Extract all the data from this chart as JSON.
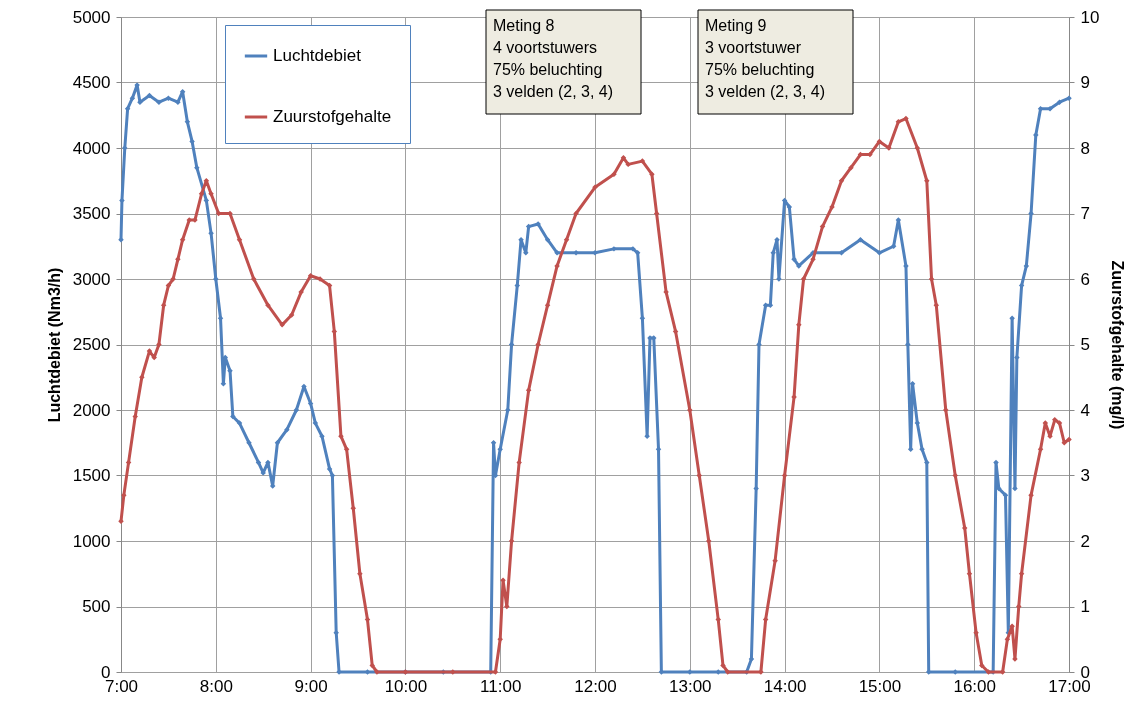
{
  "chart_data": {
    "type": "line",
    "ylabel": "Luchtdebiet (Nm3/h)",
    "y2label": "Zuurstofgehalte  (mg/l)",
    "xlim": [
      7,
      17
    ],
    "xticks": [
      {
        "value": 7,
        "label": "7:00"
      },
      {
        "value": 8,
        "label": "8:00"
      },
      {
        "value": 9,
        "label": "9:00"
      },
      {
        "value": 10,
        "label": "10:00"
      },
      {
        "value": 11,
        "label": "11:00"
      },
      {
        "value": 12,
        "label": "12:00"
      },
      {
        "value": 13,
        "label": "13:00"
      },
      {
        "value": 14,
        "label": "14:00"
      },
      {
        "value": 15,
        "label": "15:00"
      },
      {
        "value": 16,
        "label": "16:00"
      },
      {
        "value": 17,
        "label": "17:00"
      }
    ],
    "ylim": [
      0,
      5000
    ],
    "yticks": [
      0,
      500,
      1000,
      1500,
      2000,
      2500,
      3000,
      3500,
      4000,
      4500,
      5000
    ],
    "y2lim": [
      0,
      10
    ],
    "y2ticks": [
      0,
      1,
      2,
      3,
      4,
      5,
      6,
      7,
      8,
      9,
      10
    ],
    "grid": true,
    "legend": "top left",
    "marker": "diamond",
    "line_style": "solid",
    "annotations": [
      "Meting 8\n4 voortstuwers\n75% beluchting\n3 velden (2, 3, 4)",
      "Meting 9\n3 voortstuwer\n75% beluchting\n3 velden (2, 3, 4)"
    ],
    "series": [
      {
        "name": "Luchtdebiet",
        "color": "#4f81bd",
        "axis": "y",
        "x": [
          7.0,
          7.01,
          7.04,
          7.07,
          7.12,
          7.17,
          7.2,
          7.3,
          7.4,
          7.5,
          7.6,
          7.65,
          7.7,
          7.75,
          7.8,
          7.9,
          7.95,
          8.0,
          8.05,
          8.08,
          8.1,
          8.15,
          8.18,
          8.25,
          8.35,
          8.45,
          8.5,
          8.55,
          8.6,
          8.65,
          8.75,
          8.85,
          8.93,
          9.0,
          9.05,
          9.12,
          9.2,
          9.23,
          9.27,
          9.3,
          9.6,
          10.0,
          10.4,
          10.9,
          10.93,
          10.95,
          11.0,
          11.08,
          11.12,
          11.18,
          11.22,
          11.27,
          11.3,
          11.4,
          11.5,
          11.6,
          11.8,
          12.0,
          12.2,
          12.4,
          12.45,
          12.5,
          12.55,
          12.58,
          12.62,
          12.67,
          12.7,
          13.0,
          13.3,
          13.6,
          13.65,
          13.7,
          13.73,
          13.8,
          13.85,
          13.88,
          13.92,
          13.94,
          14.0,
          14.05,
          14.1,
          14.15,
          14.3,
          14.6,
          14.8,
          15.0,
          15.15,
          15.2,
          15.28,
          15.3,
          15.33,
          15.35,
          15.4,
          15.45,
          15.5,
          15.52,
          15.8,
          16.2,
          16.23,
          16.26,
          16.33,
          16.36,
          16.4,
          16.43,
          16.45,
          16.5,
          16.55,
          16.6,
          16.65,
          16.7,
          16.8,
          16.9,
          17.0
        ],
        "values": [
          3300,
          3600,
          4000,
          4300,
          4380,
          4480,
          4350,
          4400,
          4350,
          4380,
          4350,
          4430,
          4200,
          4050,
          3850,
          3600,
          3350,
          3000,
          2700,
          2200,
          2400,
          2300,
          1950,
          1900,
          1750,
          1600,
          1520,
          1600,
          1420,
          1750,
          1850,
          2000,
          2180,
          2050,
          1900,
          1800,
          1550,
          1500,
          300,
          0,
          0,
          0,
          0,
          0,
          1750,
          1500,
          1700,
          2000,
          2500,
          2950,
          3300,
          3200,
          3400,
          3420,
          3300,
          3200,
          3200,
          3200,
          3230,
          3230,
          3200,
          2700,
          1800,
          2550,
          2550,
          1700,
          0,
          0,
          0,
          0,
          100,
          1400,
          2500,
          2800,
          2800,
          3200,
          3300,
          3000,
          3600,
          3550,
          3150,
          3100,
          3200,
          3200,
          3300,
          3200,
          3250,
          3450,
          3100,
          2500,
          1700,
          2200,
          1900,
          1700,
          1600,
          0,
          0,
          0,
          1600,
          1400,
          1350,
          300,
          2700,
          1400,
          2400,
          2950,
          3100,
          3500,
          4100,
          4300,
          4300,
          4350,
          4380
        ]
      },
      {
        "name": "Zuurstofgehalte",
        "color": "#c0504d",
        "axis": "y2",
        "x": [
          7.0,
          7.03,
          7.08,
          7.15,
          7.22,
          7.3,
          7.35,
          7.4,
          7.45,
          7.5,
          7.55,
          7.6,
          7.65,
          7.72,
          7.78,
          7.85,
          7.9,
          7.95,
          8.03,
          8.15,
          8.25,
          8.4,
          8.55,
          8.7,
          8.8,
          8.9,
          9.0,
          9.1,
          9.2,
          9.25,
          9.32,
          9.38,
          9.45,
          9.52,
          9.6,
          9.65,
          9.7,
          10.0,
          10.5,
          10.95,
          11.0,
          11.03,
          11.07,
          11.12,
          11.2,
          11.3,
          11.4,
          11.5,
          11.6,
          11.7,
          11.8,
          12.0,
          12.2,
          12.3,
          12.35,
          12.5,
          12.6,
          12.65,
          12.75,
          12.85,
          13.0,
          13.1,
          13.2,
          13.3,
          13.35,
          13.4,
          13.75,
          13.8,
          13.9,
          14.0,
          14.1,
          14.15,
          14.2,
          14.3,
          14.4,
          14.5,
          14.6,
          14.7,
          14.8,
          14.9,
          15.0,
          15.1,
          15.2,
          15.28,
          15.4,
          15.5,
          15.55,
          15.6,
          15.7,
          15.8,
          15.9,
          15.95,
          16.02,
          16.08,
          16.15,
          16.3,
          16.35,
          16.4,
          16.43,
          16.47,
          16.5,
          16.6,
          16.7,
          16.75,
          16.8,
          16.85,
          16.9,
          16.95,
          17.0
        ],
        "values": [
          2.3,
          2.7,
          3.2,
          3.9,
          4.5,
          4.9,
          4.8,
          5.0,
          5.6,
          5.9,
          6.0,
          6.3,
          6.6,
          6.9,
          6.9,
          7.3,
          7.5,
          7.3,
          7.0,
          7.0,
          6.6,
          6.0,
          5.6,
          5.3,
          5.45,
          5.8,
          6.05,
          6.0,
          5.9,
          5.2,
          3.6,
          3.4,
          2.5,
          1.5,
          0.8,
          0.1,
          0.0,
          0.0,
          0.0,
          0.0,
          0.5,
          1.4,
          1.0,
          2.0,
          3.2,
          4.3,
          5.0,
          5.6,
          6.2,
          6.6,
          7.0,
          7.4,
          7.6,
          7.85,
          7.75,
          7.8,
          7.6,
          7.0,
          5.8,
          5.2,
          4.0,
          3.0,
          2.0,
          0.8,
          0.1,
          0.0,
          0.0,
          0.8,
          1.7,
          3.0,
          4.2,
          5.3,
          6.0,
          6.3,
          6.8,
          7.1,
          7.5,
          7.7,
          7.9,
          7.9,
          8.1,
          8.0,
          8.4,
          8.45,
          8.0,
          7.5,
          6.0,
          5.6,
          4.0,
          3.0,
          2.2,
          1.5,
          0.6,
          0.1,
          0.0,
          0.0,
          0.5,
          0.7,
          0.2,
          1.0,
          1.5,
          2.7,
          3.4,
          3.8,
          3.6,
          3.85,
          3.8,
          3.5,
          3.55
        ]
      }
    ]
  }
}
